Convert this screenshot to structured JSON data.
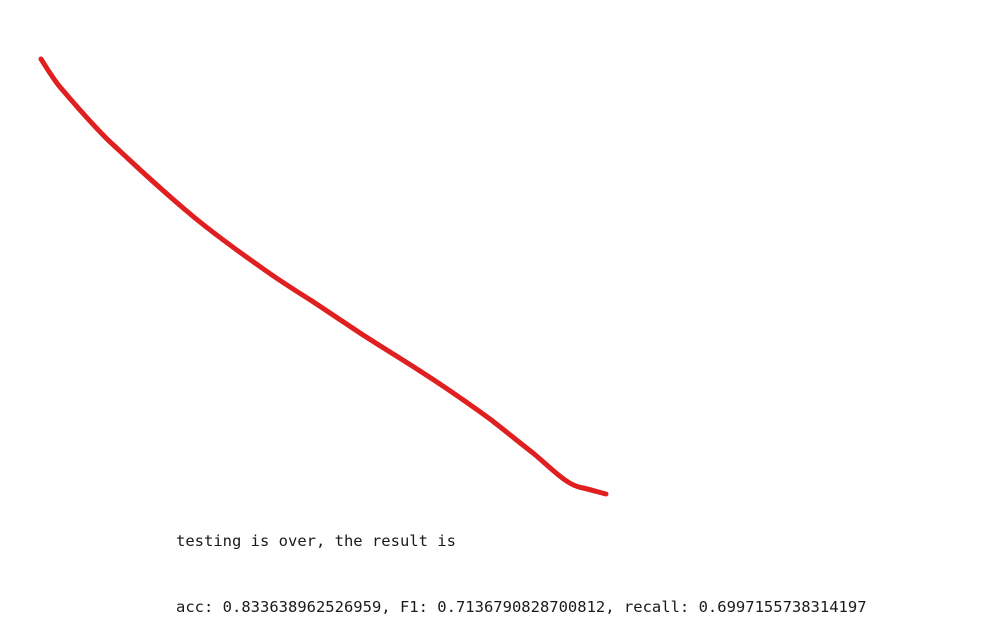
{
  "annotation": {
    "stroke_color": "#e02020"
  },
  "console": {
    "line1": "testing is over, the result is",
    "line2": "acc: 0.833638962526959, F1: 0.7136790828700812, recall: 0.6997155738314197"
  }
}
